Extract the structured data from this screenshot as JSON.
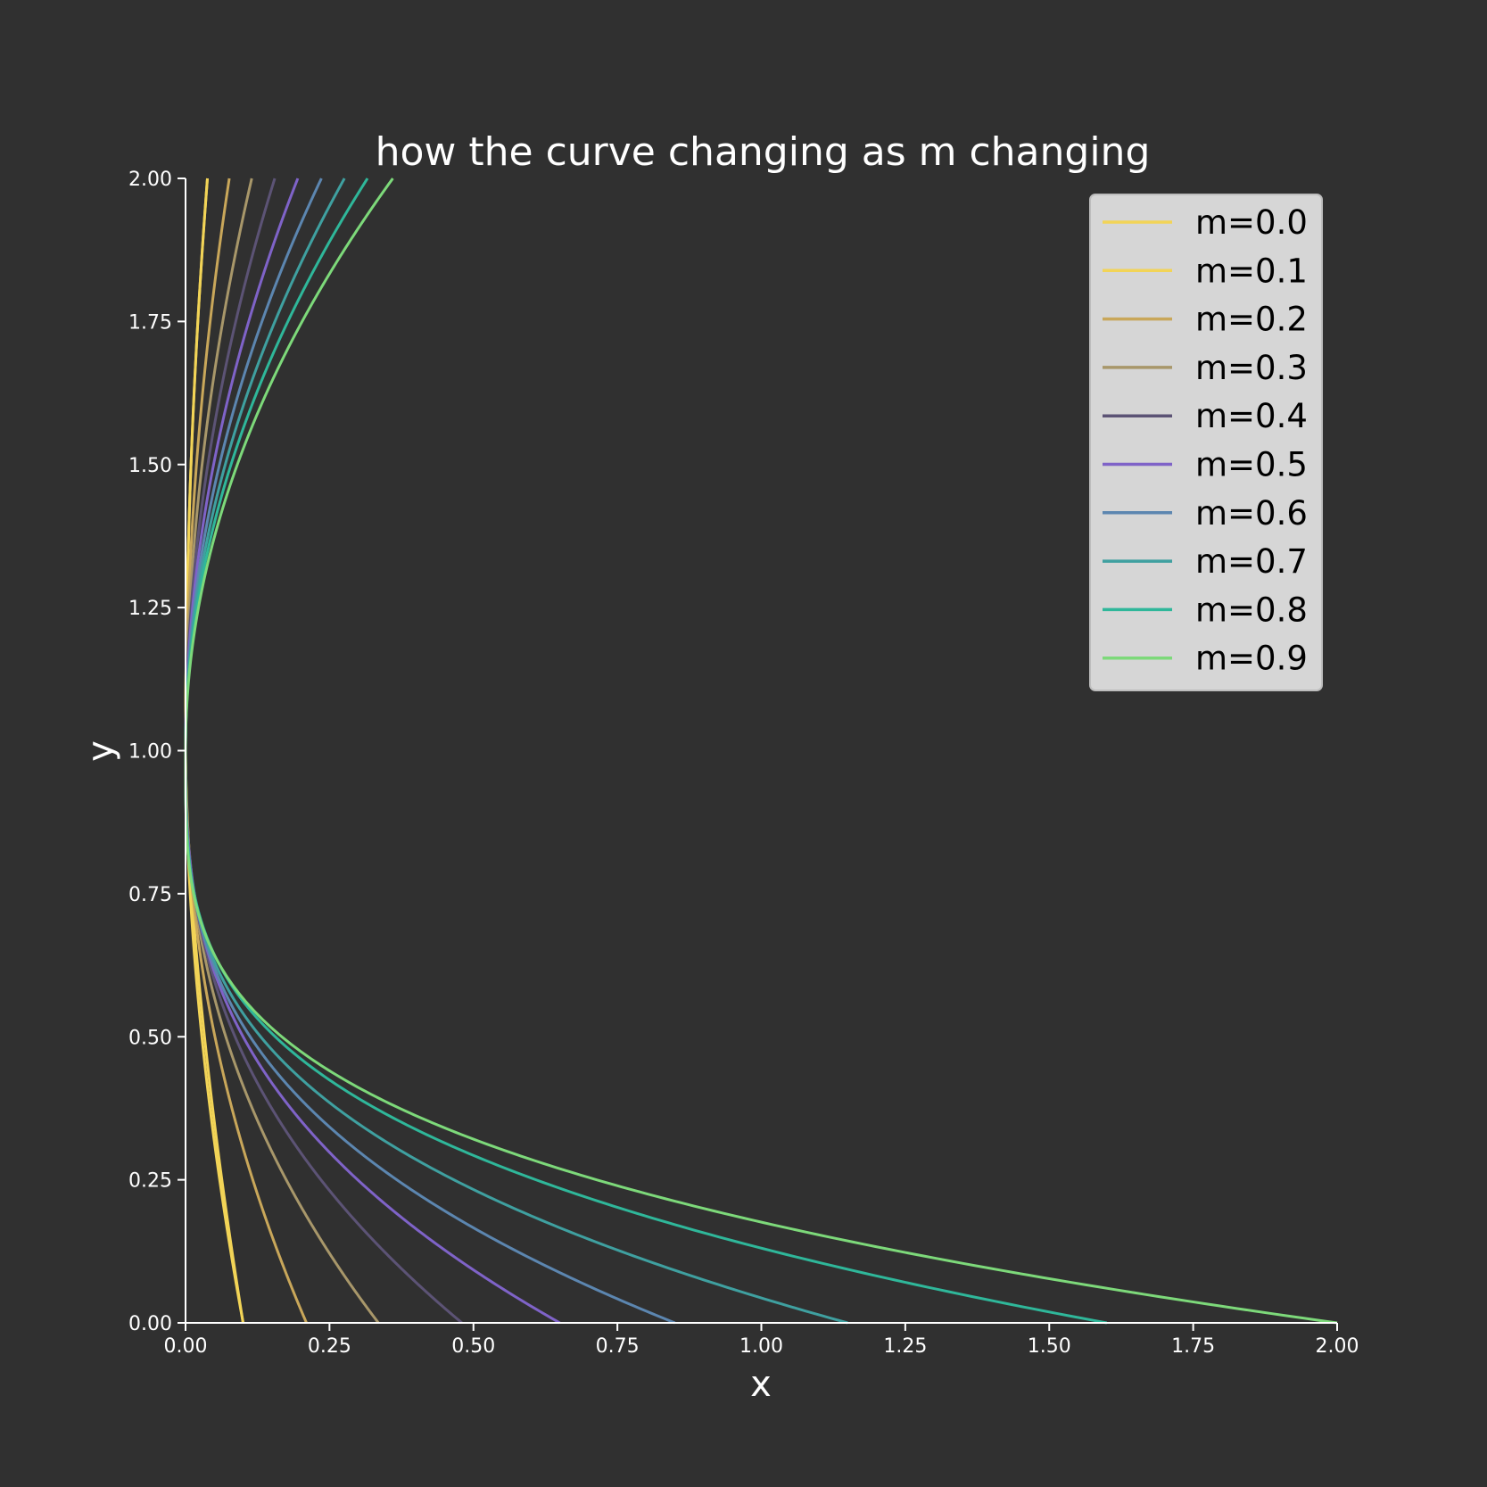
{
  "chart_data": {
    "type": "line",
    "title": "how the curve changing as m changing",
    "xlabel": "x",
    "ylabel": "y",
    "xlim": [
      0,
      2
    ],
    "ylim": [
      0,
      2
    ],
    "xticks": [
      "0.00",
      "0.25",
      "0.50",
      "0.75",
      "1.00",
      "1.25",
      "1.50",
      "1.75",
      "2.00"
    ],
    "yticks": [
      "0.00",
      "0.25",
      "0.50",
      "0.75",
      "1.00",
      "1.25",
      "1.50",
      "1.75",
      "2.00"
    ],
    "grid": false,
    "legend_position": "top-right",
    "background": "#303030",
    "legend_background": "#d6d6d6",
    "axis_color": "#ffffff",
    "series": [
      {
        "name": "m=0.0",
        "m": 0.0,
        "color": "#f2d457",
        "upper_x_at_top": 0.038,
        "lower_x_at_zero": 0.1
      },
      {
        "name": "m=0.1",
        "m": 0.1,
        "color": "#f2d457",
        "upper_x_at_top": 0.038,
        "lower_x_at_zero": 0.1
      },
      {
        "name": "m=0.2",
        "m": 0.2,
        "color": "#c9a75a",
        "upper_x_at_top": 0.076,
        "lower_x_at_zero": 0.21
      },
      {
        "name": "m=0.3",
        "m": 0.3,
        "color": "#a8976a",
        "upper_x_at_top": 0.115,
        "lower_x_at_zero": 0.335
      },
      {
        "name": "m=0.4",
        "m": 0.4,
        "color": "#5c5375",
        "upper_x_at_top": 0.155,
        "lower_x_at_zero": 0.48
      },
      {
        "name": "m=0.5",
        "m": 0.5,
        "color": "#7f63c8",
        "upper_x_at_top": 0.195,
        "lower_x_at_zero": 0.65
      },
      {
        "name": "m=0.6",
        "m": 0.6,
        "color": "#5c86b0",
        "upper_x_at_top": 0.236,
        "lower_x_at_zero": 0.85
      },
      {
        "name": "m=0.7",
        "m": 0.7,
        "color": "#3fa0a0",
        "upper_x_at_top": 0.276,
        "lower_x_at_zero": 1.15
      },
      {
        "name": "m=0.8",
        "m": 0.8,
        "color": "#2fb79a",
        "upper_x_at_top": 0.316,
        "lower_x_at_zero": 1.6
      },
      {
        "name": "m=0.9",
        "m": 0.9,
        "color": "#7dd97a",
        "upper_x_at_top": 0.36,
        "lower_x_at_zero": 2.0
      }
    ]
  }
}
